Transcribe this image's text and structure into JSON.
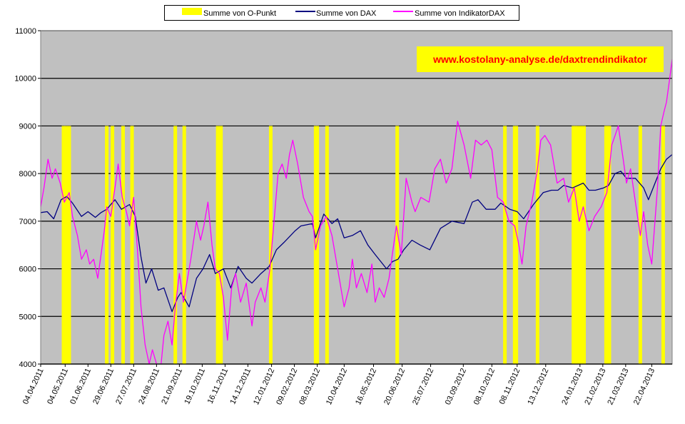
{
  "chart_data": {
    "type": "line",
    "title": "",
    "xlabel": "",
    "ylabel": "",
    "ylim": [
      4000,
      11000
    ],
    "yticks": [
      4000,
      5000,
      6000,
      7000,
      8000,
      9000,
      10000,
      11000
    ],
    "grid": "horizontal",
    "background": "#c0c0c0",
    "x_range": [
      "2011-04-04",
      "2013-05-17"
    ],
    "xticks": [
      "04.04.2011",
      "04.05.2011",
      "01.06.2011",
      "29.06.2011",
      "27.07.2011",
      "24.08.2011",
      "21.09.2011",
      "19.10.2011",
      "16.11.2011",
      "14.12.2011",
      "12.01.2012",
      "09.02.2012",
      "08.03.2012",
      "10.04.2012",
      "16.05.2012",
      "20.06.2012",
      "25.07.2012",
      "03.09.2012",
      "08.10.2012",
      "08.11.2012",
      "13.12.2012",
      "24.01.2013",
      "21.02.2013",
      "21.03.2013",
      "22.04.2013"
    ],
    "legend_position": "top",
    "annotation": "www.kostolany-analyse.de/daxtrendindikator",
    "series": [
      {
        "name": "Summe von O-Punkt",
        "kind": "bar",
        "color": "#ffff00",
        "value": 9000,
        "dates": [
          "2011-05-02",
          "2011-05-05",
          "2011-05-09",
          "2011-06-24",
          "2011-07-01",
          "2011-07-14",
          "2011-07-25",
          "2011-09-16",
          "2011-09-27",
          "2011-11-07",
          "2011-11-11",
          "2012-01-11",
          "2012-03-06",
          "2012-03-08",
          "2012-03-20",
          "2012-06-14",
          "2012-10-24",
          "2012-11-05",
          "2012-11-07",
          "2012-12-03",
          "2013-01-16",
          "2013-01-18",
          "2013-01-21",
          "2013-01-25",
          "2013-01-29",
          "2013-02-25",
          "2013-02-27",
          "2013-03-01",
          "2013-04-08",
          "2013-05-06"
        ]
      },
      {
        "name": "Summe von DAX",
        "kind": "line",
        "color": "#000080",
        "points": [
          [
            "2011-04-04",
            7180
          ],
          [
            "2011-04-12",
            7200
          ],
          [
            "2011-04-20",
            7050
          ],
          [
            "2011-04-29",
            7450
          ],
          [
            "2011-05-06",
            7520
          ],
          [
            "2011-05-13",
            7380
          ],
          [
            "2011-05-24",
            7100
          ],
          [
            "2011-06-01",
            7200
          ],
          [
            "2011-06-10",
            7080
          ],
          [
            "2011-06-17",
            7180
          ],
          [
            "2011-06-24",
            7250
          ],
          [
            "2011-07-04",
            7450
          ],
          [
            "2011-07-12",
            7250
          ],
          [
            "2011-07-22",
            7350
          ],
          [
            "2011-07-29",
            7100
          ],
          [
            "2011-08-05",
            6250
          ],
          [
            "2011-08-11",
            5700
          ],
          [
            "2011-08-18",
            6000
          ],
          [
            "2011-08-26",
            5550
          ],
          [
            "2011-09-02",
            5600
          ],
          [
            "2011-09-12",
            5100
          ],
          [
            "2011-09-19",
            5400
          ],
          [
            "2011-09-23",
            5500
          ],
          [
            "2011-10-03",
            5200
          ],
          [
            "2011-10-12",
            5800
          ],
          [
            "2011-10-20",
            6000
          ],
          [
            "2011-10-28",
            6300
          ],
          [
            "2011-11-04",
            5900
          ],
          [
            "2011-11-14",
            6000
          ],
          [
            "2011-11-23",
            5600
          ],
          [
            "2011-12-02",
            6050
          ],
          [
            "2011-12-12",
            5800
          ],
          [
            "2011-12-19",
            5700
          ],
          [
            "2011-12-30",
            5900
          ],
          [
            "2012-01-09",
            6050
          ],
          [
            "2012-01-18",
            6400
          ],
          [
            "2012-01-27",
            6550
          ],
          [
            "2012-02-10",
            6800
          ],
          [
            "2012-02-17",
            6900
          ],
          [
            "2012-03-02",
            6950
          ],
          [
            "2012-03-06",
            6650
          ],
          [
            "2012-03-16",
            7150
          ],
          [
            "2012-03-26",
            6950
          ],
          [
            "2012-04-02",
            7050
          ],
          [
            "2012-04-10",
            6650
          ],
          [
            "2012-04-20",
            6700
          ],
          [
            "2012-04-30",
            6800
          ],
          [
            "2012-05-09",
            6500
          ],
          [
            "2012-05-18",
            6300
          ],
          [
            "2012-06-01",
            6000
          ],
          [
            "2012-06-08",
            6150
          ],
          [
            "2012-06-15",
            6200
          ],
          [
            "2012-06-22",
            6400
          ],
          [
            "2012-07-02",
            6600
          ],
          [
            "2012-07-12",
            6500
          ],
          [
            "2012-07-24",
            6400
          ],
          [
            "2012-08-06",
            6850
          ],
          [
            "2012-08-20",
            7000
          ],
          [
            "2012-09-04",
            6950
          ],
          [
            "2012-09-14",
            7400
          ],
          [
            "2012-09-21",
            7450
          ],
          [
            "2012-10-01",
            7250
          ],
          [
            "2012-10-12",
            7250
          ],
          [
            "2012-10-19",
            7380
          ],
          [
            "2012-10-30",
            7250
          ],
          [
            "2012-11-08",
            7200
          ],
          [
            "2012-11-16",
            7050
          ],
          [
            "2012-11-28",
            7350
          ],
          [
            "2012-12-10",
            7600
          ],
          [
            "2012-12-20",
            7650
          ],
          [
            "2012-12-28",
            7650
          ],
          [
            "2013-01-04",
            7750
          ],
          [
            "2013-01-15",
            7700
          ],
          [
            "2013-01-28",
            7800
          ],
          [
            "2013-02-04",
            7650
          ],
          [
            "2013-02-12",
            7650
          ],
          [
            "2013-02-22",
            7700
          ],
          [
            "2013-02-28",
            7750
          ],
          [
            "2013-03-08",
            8000
          ],
          [
            "2013-03-15",
            8050
          ],
          [
            "2013-03-22",
            7900
          ],
          [
            "2013-04-02",
            7900
          ],
          [
            "2013-04-12",
            7700
          ],
          [
            "2013-04-18",
            7450
          ],
          [
            "2013-04-26",
            7800
          ],
          [
            "2013-05-03",
            8100
          ],
          [
            "2013-05-10",
            8300
          ],
          [
            "2013-05-17",
            8400
          ]
        ]
      },
      {
        "name": "Summe von IndikatorDAX",
        "kind": "line",
        "color": "#ff00ff",
        "points": [
          [
            "2011-04-04",
            7300
          ],
          [
            "2011-04-08",
            7700
          ],
          [
            "2011-04-13",
            8300
          ],
          [
            "2011-04-18",
            7900
          ],
          [
            "2011-04-22",
            8100
          ],
          [
            "2011-04-28",
            7800
          ],
          [
            "2011-05-03",
            7400
          ],
          [
            "2011-05-09",
            7600
          ],
          [
            "2011-05-13",
            7100
          ],
          [
            "2011-05-19",
            6700
          ],
          [
            "2011-05-24",
            6200
          ],
          [
            "2011-05-30",
            6400
          ],
          [
            "2011-06-03",
            6100
          ],
          [
            "2011-06-08",
            6200
          ],
          [
            "2011-06-13",
            5800
          ],
          [
            "2011-06-17",
            6300
          ],
          [
            "2011-06-21",
            6800
          ],
          [
            "2011-06-24",
            7300
          ],
          [
            "2011-06-29",
            7100
          ],
          [
            "2011-07-04",
            7700
          ],
          [
            "2011-07-08",
            8200
          ],
          [
            "2011-07-13",
            7500
          ],
          [
            "2011-07-18",
            7200
          ],
          [
            "2011-07-22",
            6900
          ],
          [
            "2011-07-27",
            7500
          ],
          [
            "2011-08-01",
            6300
          ],
          [
            "2011-08-05",
            5200
          ],
          [
            "2011-08-10",
            4400
          ],
          [
            "2011-08-15",
            4000
          ],
          [
            "2011-08-19",
            4300
          ],
          [
            "2011-08-24",
            4000
          ],
          [
            "2011-08-29",
            3900
          ],
          [
            "2011-09-02",
            4600
          ],
          [
            "2011-09-07",
            4900
          ],
          [
            "2011-09-12",
            4400
          ],
          [
            "2011-09-16",
            5200
          ],
          [
            "2011-09-21",
            5900
          ],
          [
            "2011-09-26",
            5300
          ],
          [
            "2011-09-30",
            5700
          ],
          [
            "2011-10-05",
            6200
          ],
          [
            "2011-10-12",
            7000
          ],
          [
            "2011-10-17",
            6600
          ],
          [
            "2011-10-21",
            6900
          ],
          [
            "2011-10-26",
            7400
          ],
          [
            "2011-10-31",
            6500
          ],
          [
            "2011-11-04",
            6000
          ],
          [
            "2011-11-09",
            5900
          ],
          [
            "2011-11-14",
            5400
          ],
          [
            "2011-11-19",
            4500
          ],
          [
            "2011-11-24",
            5600
          ],
          [
            "2011-11-29",
            5900
          ],
          [
            "2011-12-05",
            5300
          ],
          [
            "2011-12-12",
            5700
          ],
          [
            "2011-12-19",
            4800
          ],
          [
            "2011-12-23",
            5300
          ],
          [
            "2011-12-30",
            5600
          ],
          [
            "2012-01-04",
            5300
          ],
          [
            "2012-01-10",
            6000
          ],
          [
            "2012-01-16",
            7200
          ],
          [
            "2012-01-20",
            8000
          ],
          [
            "2012-01-25",
            8200
          ],
          [
            "2012-01-30",
            7900
          ],
          [
            "2012-02-03",
            8400
          ],
          [
            "2012-02-07",
            8700
          ],
          [
            "2012-02-13",
            8200
          ],
          [
            "2012-02-20",
            7500
          ],
          [
            "2012-02-27",
            7200
          ],
          [
            "2012-03-02",
            7100
          ],
          [
            "2012-03-06",
            6400
          ],
          [
            "2012-03-12",
            6900
          ],
          [
            "2012-03-19",
            7100
          ],
          [
            "2012-03-26",
            6700
          ],
          [
            "2012-04-02",
            6000
          ],
          [
            "2012-04-10",
            5200
          ],
          [
            "2012-04-16",
            5600
          ],
          [
            "2012-04-20",
            6200
          ],
          [
            "2012-04-25",
            5600
          ],
          [
            "2012-05-01",
            5900
          ],
          [
            "2012-05-08",
            5500
          ],
          [
            "2012-05-14",
            6100
          ],
          [
            "2012-05-18",
            5300
          ],
          [
            "2012-05-23",
            5600
          ],
          [
            "2012-05-29",
            5400
          ],
          [
            "2012-06-04",
            5800
          ],
          [
            "2012-06-08",
            6300
          ],
          [
            "2012-06-13",
            6900
          ],
          [
            "2012-06-19",
            6300
          ],
          [
            "2012-06-25",
            7900
          ],
          [
            "2012-07-02",
            7400
          ],
          [
            "2012-07-06",
            7200
          ],
          [
            "2012-07-13",
            7500
          ],
          [
            "2012-07-23",
            7400
          ],
          [
            "2012-07-30",
            8100
          ],
          [
            "2012-08-06",
            8300
          ],
          [
            "2012-08-13",
            7800
          ],
          [
            "2012-08-20",
            8100
          ],
          [
            "2012-08-27",
            9100
          ],
          [
            "2012-09-04",
            8600
          ],
          [
            "2012-09-12",
            7900
          ],
          [
            "2012-09-18",
            8700
          ],
          [
            "2012-09-25",
            8600
          ],
          [
            "2012-10-02",
            8700
          ],
          [
            "2012-10-08",
            8500
          ],
          [
            "2012-10-15",
            7500
          ],
          [
            "2012-10-22",
            7400
          ],
          [
            "2012-10-29",
            7000
          ],
          [
            "2012-11-05",
            6900
          ],
          [
            "2012-11-09",
            6600
          ],
          [
            "2012-11-14",
            6100
          ],
          [
            "2012-11-19",
            6900
          ],
          [
            "2012-11-26",
            7400
          ],
          [
            "2012-12-03",
            8100
          ],
          [
            "2012-12-07",
            8700
          ],
          [
            "2012-12-12",
            8800
          ],
          [
            "2012-12-19",
            8600
          ],
          [
            "2012-12-27",
            7800
          ],
          [
            "2013-01-04",
            7900
          ],
          [
            "2013-01-10",
            7400
          ],
          [
            "2013-01-17",
            7700
          ],
          [
            "2013-01-23",
            7000
          ],
          [
            "2013-01-28",
            7300
          ],
          [
            "2013-02-04",
            6800
          ],
          [
            "2013-02-11",
            7100
          ],
          [
            "2013-02-19",
            7300
          ],
          [
            "2013-02-26",
            7600
          ],
          [
            "2013-03-04",
            8600
          ],
          [
            "2013-03-08",
            8800
          ],
          [
            "2013-03-12",
            9000
          ],
          [
            "2013-03-18",
            8300
          ],
          [
            "2013-03-22",
            7800
          ],
          [
            "2013-03-27",
            8100
          ],
          [
            "2013-04-02",
            7400
          ],
          [
            "2013-04-08",
            6700
          ],
          [
            "2013-04-12",
            7200
          ],
          [
            "2013-04-17",
            6500
          ],
          [
            "2013-04-22",
            6100
          ],
          [
            "2013-04-29",
            7700
          ],
          [
            "2013-05-03",
            9000
          ],
          [
            "2013-05-07",
            9300
          ],
          [
            "2013-05-10",
            9500
          ],
          [
            "2013-05-14",
            10000
          ],
          [
            "2013-05-17",
            10400
          ]
        ]
      }
    ]
  }
}
